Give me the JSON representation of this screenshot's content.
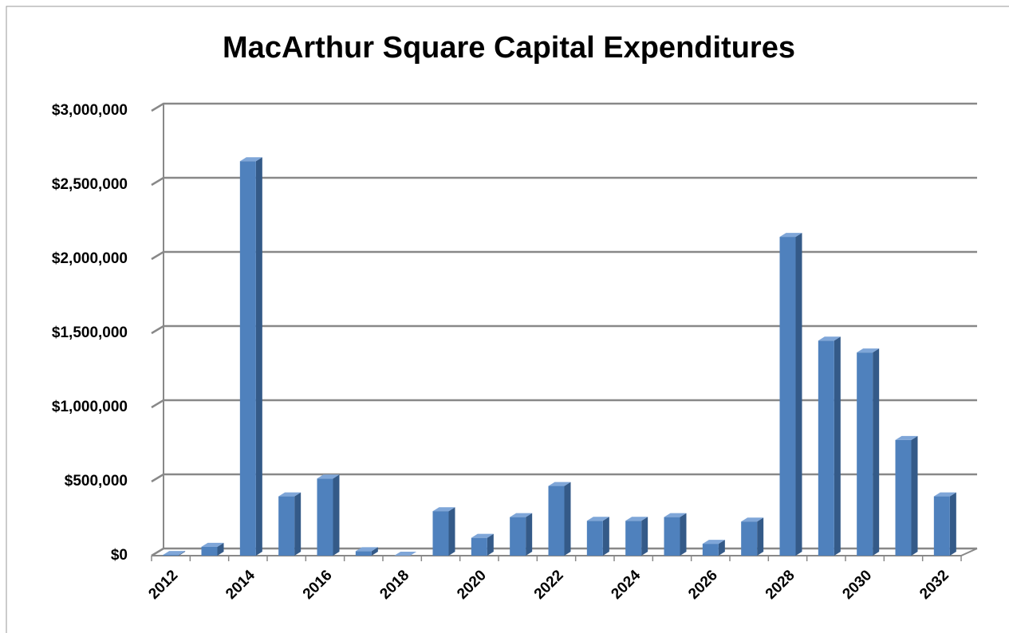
{
  "chart_data": {
    "type": "bar",
    "title": "MacArthur Square Capital Expenditures",
    "categories": [
      "2012",
      null,
      "2014",
      null,
      "2016",
      null,
      "2018",
      null,
      "2020",
      null,
      "2022",
      null,
      "2024",
      null,
      "2026",
      null,
      "2028",
      null,
      "2030",
      null,
      "2032"
    ],
    "values": [
      5000,
      60000,
      2660000,
      400000,
      520000,
      30000,
      0,
      300000,
      120000,
      260000,
      470000,
      235000,
      235000,
      260000,
      80000,
      230000,
      2150000,
      1450000,
      1370000,
      780000,
      400000
    ],
    "color": "#4f81bd",
    "ylim": [
      0,
      3000000
    ],
    "yticks": [
      {
        "value": 0,
        "label": "$0"
      },
      {
        "value": 500000,
        "label": "$500,000"
      },
      {
        "value": 1000000,
        "label": "$1,000,000"
      },
      {
        "value": 1500000,
        "label": "$1,500,000"
      },
      {
        "value": 2000000,
        "label": "$2,000,000"
      },
      {
        "value": 2500000,
        "label": "$2,500,000"
      },
      {
        "value": 3000000,
        "label": "$3,000,000"
      }
    ],
    "grid": true
  }
}
